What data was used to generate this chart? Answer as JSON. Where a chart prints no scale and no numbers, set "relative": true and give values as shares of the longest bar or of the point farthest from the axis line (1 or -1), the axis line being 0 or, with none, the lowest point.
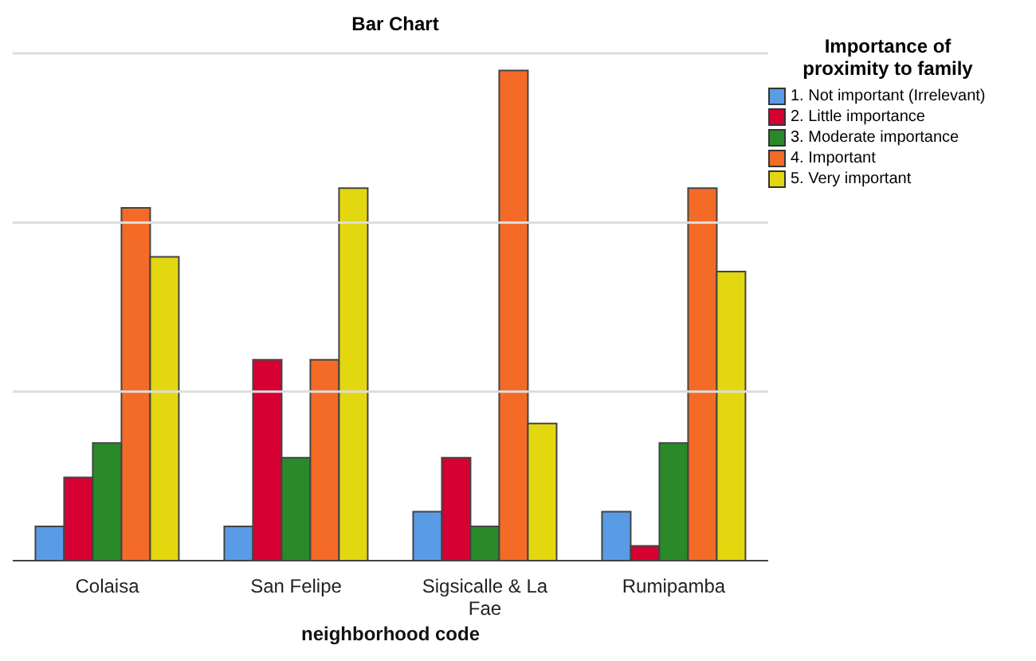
{
  "chart_data": {
    "type": "bar",
    "title": "Bar Chart",
    "xlabel": "neighborhood code",
    "legend_title": "Importance of proximity to family",
    "relative": true,
    "legend": "top right",
    "ref_lines": [
      {
        "axis": "y",
        "value": 0.345,
        "color": "#dddddd"
      },
      {
        "axis": "y",
        "value": 0.69,
        "color": "#dddddd"
      },
      {
        "axis": "y",
        "value": 1.035,
        "color": "#dddddd"
      }
    ],
    "categories": [
      "Colaisa",
      "San Felipe",
      "Sigsicalle & La Fae",
      "Rumipamba"
    ],
    "series": [
      {
        "name": "1. Not important (Irrelevant)",
        "color": "#5a9be6",
        "values": [
          0.07,
          0.07,
          0.1,
          0.1
        ]
      },
      {
        "name": "2. Little importance",
        "color": "#d60032",
        "values": [
          0.17,
          0.41,
          0.21,
          0.03
        ]
      },
      {
        "name": "3. Moderate importance",
        "color": "#2a8a2a",
        "values": [
          0.24,
          0.21,
          0.07,
          0.24
        ]
      },
      {
        "name": "4. Important",
        "color": "#f36b27",
        "values": [
          0.72,
          0.41,
          1,
          0.76
        ]
      },
      {
        "name": "5. Very important",
        "color": "#e3d80f",
        "values": [
          0.62,
          0.76,
          0.28,
          0.59
        ]
      }
    ]
  }
}
